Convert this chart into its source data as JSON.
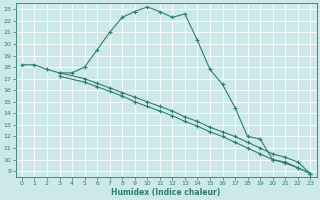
{
  "xlabel": "Humidex (Indice chaleur)",
  "bg_color": "#cce8e8",
  "grid_color": "#ffffff",
  "line_color": "#2e7d6e",
  "xlim": [
    -0.5,
    23.5
  ],
  "ylim": [
    8.5,
    23.5
  ],
  "xticks": [
    0,
    1,
    2,
    3,
    4,
    5,
    6,
    7,
    8,
    9,
    10,
    11,
    12,
    13,
    14,
    15,
    16,
    17,
    18,
    19,
    20,
    21,
    22,
    23
  ],
  "yticks": [
    9,
    10,
    11,
    12,
    13,
    14,
    15,
    16,
    17,
    18,
    19,
    20,
    21,
    22,
    23
  ],
  "line1_x": [
    0,
    1,
    2,
    3,
    4,
    5,
    6,
    7,
    8,
    9,
    10,
    11,
    12,
    13,
    14,
    15,
    16,
    17,
    18,
    19,
    20,
    21,
    22,
    23
  ],
  "line1_y": [
    18.2,
    18.2,
    17.8,
    17.5,
    17.5,
    18.0,
    19.5,
    21.0,
    22.3,
    22.8,
    23.2,
    22.8,
    22.3,
    22.6,
    20.3,
    17.8,
    16.5,
    14.5,
    12.0,
    11.8,
    10.0,
    9.8,
    9.3,
    8.8
  ],
  "line2_x": [
    3,
    4,
    23
  ],
  "line2_y": [
    17.5,
    17.5,
    8.8
  ],
  "line3_x": [
    3,
    4,
    23
  ],
  "line3_y": [
    17.2,
    17.2,
    8.8
  ],
  "line2_full_x": [
    3,
    5,
    6,
    7,
    8,
    9,
    10,
    11,
    12,
    13,
    14,
    15,
    16,
    17,
    18,
    19,
    20,
    21,
    22,
    23
  ],
  "line2_full_y": [
    17.5,
    17.0,
    16.6,
    16.2,
    15.8,
    15.4,
    15.0,
    14.6,
    14.2,
    13.7,
    13.3,
    12.8,
    12.4,
    12.0,
    11.5,
    11.0,
    10.5,
    10.2,
    9.8,
    8.8
  ],
  "line3_full_x": [
    3,
    5,
    6,
    7,
    8,
    9,
    10,
    11,
    12,
    13,
    14,
    15,
    16,
    17,
    18,
    19,
    20,
    21,
    22,
    23
  ],
  "line3_full_y": [
    17.2,
    16.7,
    16.3,
    15.9,
    15.5,
    15.0,
    14.6,
    14.2,
    13.8,
    13.3,
    12.9,
    12.4,
    12.0,
    11.5,
    11.0,
    10.5,
    10.0,
    9.7,
    9.3,
    8.8
  ]
}
